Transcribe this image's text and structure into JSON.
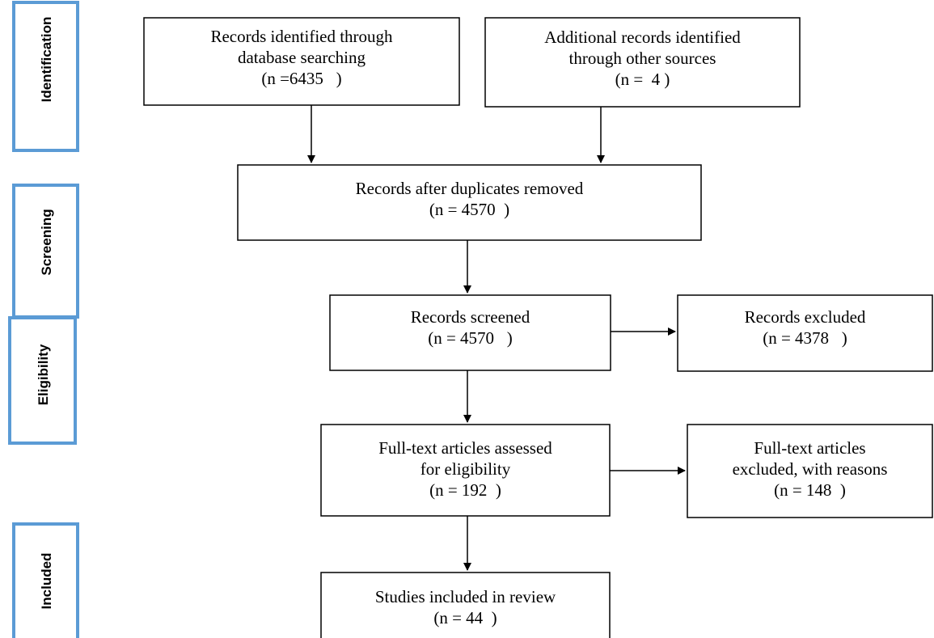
{
  "stages": [
    "Identification",
    "Screening",
    "Eligibility",
    "Included"
  ],
  "nodes": [
    {
      "lines": [
        "Records identified through",
        "database searching",
        "(n =6435   )"
      ]
    },
    {
      "lines": [
        "Additional records identified",
        "through other sources",
        "(n =  4 )"
      ]
    },
    {
      "lines": [
        "Records after duplicates removed",
        "(n = 4570  )"
      ]
    },
    {
      "lines": [
        "Records screened",
        "(n = 4570   )"
      ]
    },
    {
      "lines": [
        "Records excluded",
        "(n = 4378   )"
      ]
    },
    {
      "lines": [
        "Full-text articles assessed",
        "for eligibility",
        "(n = 192  )"
      ]
    },
    {
      "lines": [
        "Full-text articles",
        "excluded, with reasons",
        "(n = 148  )"
      ]
    },
    {
      "lines": [
        "Studies included in review",
        "(n = 44  )"
      ]
    }
  ]
}
